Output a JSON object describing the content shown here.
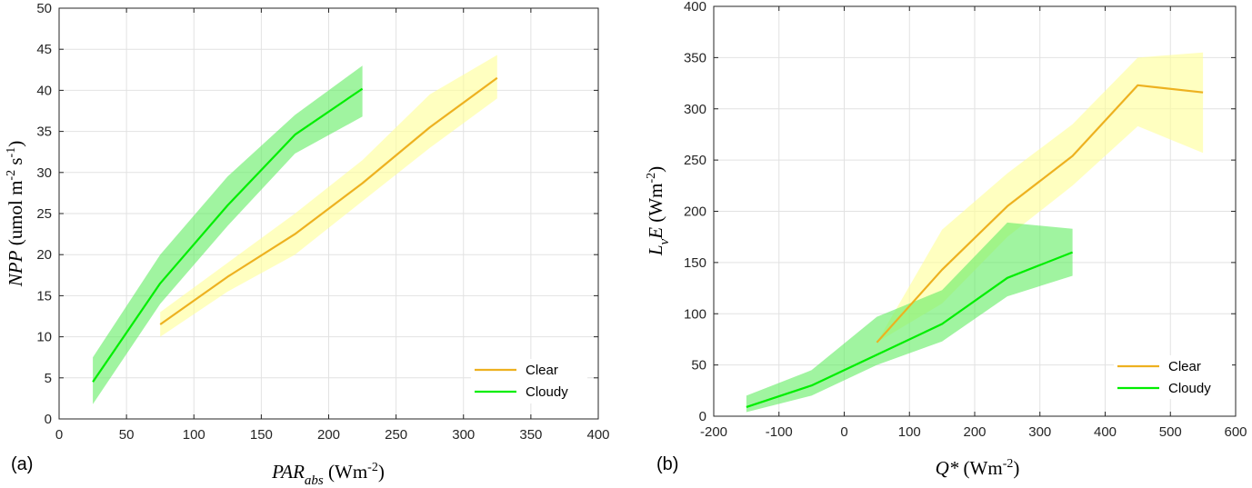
{
  "chart_data": [
    {
      "type": "line",
      "panel_label": "(a)",
      "xlabel": {
        "main": "PAR",
        "sub": "abs",
        "unit_pre": " (Wm",
        "unit_sup": "-2",
        "unit_post": ")"
      },
      "ylabel": {
        "main": "NPP",
        "unit_pre": " (umol m",
        "sup1": "-2",
        "mid": " s",
        "sup2": "-1",
        "unit_post": ")"
      },
      "xlim": [
        0,
        400
      ],
      "ylim": [
        0,
        50
      ],
      "xticks": [
        0,
        50,
        100,
        150,
        200,
        250,
        300,
        350,
        400
      ],
      "yticks": [
        0,
        5,
        10,
        15,
        20,
        25,
        30,
        35,
        40,
        45,
        50
      ],
      "grid": true,
      "legend_position": "bottom-right",
      "series": [
        {
          "name": "Clear",
          "color": "#EDB120",
          "band_color": "#FFFF99",
          "x": [
            75,
            125,
            175,
            225,
            275,
            325
          ],
          "values": [
            11.5,
            17.3,
            22.5,
            28.7,
            35.5,
            41.5
          ],
          "lower": [
            10.0,
            15.5,
            20.0,
            26.5,
            33.0,
            39.0
          ],
          "upper": [
            13.0,
            19.0,
            25.0,
            31.5,
            39.5,
            44.3
          ]
        },
        {
          "name": "Cloudy",
          "color": "#00EE00",
          "band_color": "#66EE66",
          "x": [
            25,
            75,
            125,
            175,
            225
          ],
          "values": [
            4.5,
            16.5,
            26.0,
            34.6,
            40.2
          ],
          "lower": [
            1.8,
            14.0,
            23.5,
            32.3,
            36.8
          ],
          "upper": [
            7.5,
            20.0,
            29.5,
            37.0,
            43.0
          ]
        }
      ]
    },
    {
      "type": "line",
      "panel_label": "(b)",
      "xlabel": {
        "main": "Q*",
        "unit_pre": " (Wm",
        "unit_sup": "-2",
        "unit_post": ")"
      },
      "ylabel": {
        "main": "L",
        "sub": "v",
        "main2": "E",
        "unit_pre": " (Wm",
        "unit_sup": "-2",
        "unit_post": ")"
      },
      "xlim": [
        -200,
        600
      ],
      "ylim": [
        0,
        400
      ],
      "xticks": [
        -200,
        -100,
        0,
        100,
        200,
        300,
        400,
        500,
        600
      ],
      "yticks": [
        0,
        50,
        100,
        150,
        200,
        250,
        300,
        350,
        400
      ],
      "grid": true,
      "legend_position": "bottom-right",
      "series": [
        {
          "name": "Clear",
          "color": "#EDB120",
          "band_color": "#FFFF99",
          "x": [
            50,
            150,
            250,
            350,
            450,
            550
          ],
          "values": [
            72,
            143,
            205,
            254,
            323,
            316
          ],
          "lower": [
            72,
            110,
            175,
            225,
            283,
            257
          ],
          "upper": [
            72,
            182,
            237,
            285,
            350,
            355
          ]
        },
        {
          "name": "Cloudy",
          "color": "#00EE00",
          "band_color": "#66EE66",
          "x": [
            -150,
            -50,
            50,
            150,
            250,
            350
          ],
          "values": [
            9,
            30,
            60,
            90,
            135,
            160
          ],
          "lower": [
            4,
            20,
            50,
            73,
            117,
            137
          ],
          "upper": [
            20,
            45,
            97,
            123,
            189,
            183
          ]
        }
      ]
    }
  ]
}
